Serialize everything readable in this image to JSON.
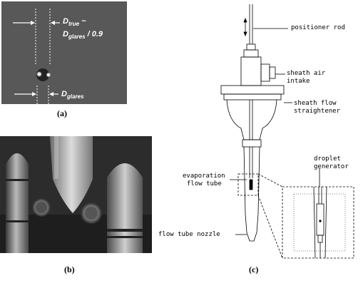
{
  "panel_a": {
    "d_true_label": "D",
    "d_true_sub": "true",
    "d_true_tilde": " ~",
    "d_glares_label": "D",
    "d_glares_sub": "glares",
    "d_glares_suffix": " / 0.9",
    "d_glares_bottom_label": "D",
    "d_glares_bottom_sub": "glares"
  },
  "panel_c": {
    "positioner_rod": "positioner rod",
    "sheath_air_intake_1": "sheath air",
    "sheath_air_intake_2": "intake",
    "sheath_flow_straightener_1": "sheath flow",
    "sheath_flow_straightener_2": "straightener",
    "droplet_generator_1": "droplet",
    "droplet_generator_2": "generator",
    "evaporation_flow_tube_1": "evaporation",
    "evaporation_flow_tube_2": "flow tube",
    "flow_tube_nozzle": "flow tube nozzle"
  },
  "captions": {
    "a": "(a)",
    "b": "(b)",
    "c": "(c)"
  }
}
